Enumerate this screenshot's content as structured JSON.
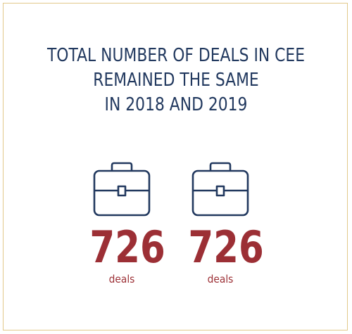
{
  "headline": {
    "line1": "TOTAL NUMBER OF DEALS IN CEE",
    "line2": "REMAINED THE SAME",
    "line3": "IN 2018 AND 2019"
  },
  "stats": [
    {
      "icon": "briefcase-icon",
      "value": "726",
      "unit": "deals"
    },
    {
      "icon": "briefcase-icon",
      "value": "726",
      "unit": "deals"
    }
  ],
  "colors": {
    "headline": "#22395f",
    "icon": "#22395f",
    "value": "#9c2f35",
    "border": "#e2c98a"
  }
}
